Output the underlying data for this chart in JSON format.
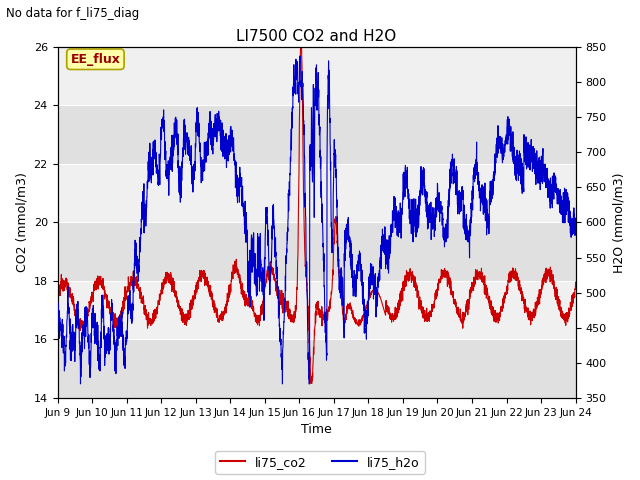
{
  "title": "LI7500 CO2 and H2O",
  "suptitle": "No data for f_li75_diag",
  "xlabel": "Time",
  "ylabel_left": "CO2 (mmol/m3)",
  "ylabel_right": "H2O (mmol/m3)",
  "ylim_left": [
    14,
    26
  ],
  "ylim_right": [
    350,
    850
  ],
  "yticks_left": [
    14,
    16,
    18,
    20,
    22,
    24,
    26
  ],
  "yticks_right": [
    350,
    400,
    450,
    500,
    550,
    600,
    650,
    700,
    750,
    800,
    850
  ],
  "xtick_labels": [
    "Jun 9",
    "Jun 10",
    "Jun 11",
    "Jun 12",
    "Jun 13",
    "Jun 14",
    "Jun 15",
    "Jun 16",
    "Jun 17",
    "Jun 18",
    "Jun 19",
    "Jun 20",
    "Jun 21",
    "Jun 22",
    "Jun 23",
    "Jun 24"
  ],
  "legend_label_co2": "li75_co2",
  "legend_label_h2o": "li75_h2o",
  "color_co2": "#cc0000",
  "color_h2o": "#0000cc",
  "annotation_box": "EE_flux",
  "background_light": "#f0f0f0",
  "background_dark": "#e0e0e0",
  "grid_color": "#ffffff",
  "linewidth": 0.8
}
